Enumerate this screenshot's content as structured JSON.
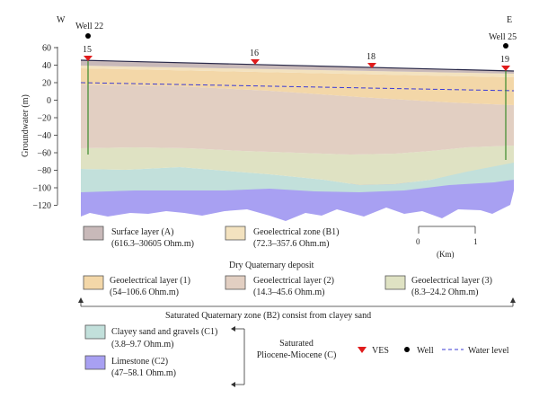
{
  "section": {
    "west_label": "W",
    "east_label": "E",
    "well_west": "Well 22",
    "well_east": "Well 25",
    "y_axis_label": "Groundwater (m)",
    "y_ticks": [
      "60",
      "40",
      "20",
      "0",
      "−20",
      "−40",
      "−60",
      "−80",
      "−100",
      "−120"
    ],
    "ves_points": [
      "15",
      "16",
      "18",
      "19"
    ],
    "scale_labels": [
      "0",
      "1",
      "(Km)"
    ]
  },
  "layers": {
    "surface": "#c8b9b9",
    "geo_b1": "#f3e2bf",
    "geo1": "#f3d7a8",
    "geo2": "#e2cfc2",
    "geo3": "#dfe2c3",
    "clayey": "#c2e0db",
    "limestone": "#a8a0f2"
  },
  "legend": {
    "surface_name": "Surface layer (A)",
    "surface_range": "(616.3–30605 Ohm.m)",
    "b1_name": "Geoelectrical zone (B1)",
    "b1_range": "(72.3–357.6 Ohm.m)",
    "dry_title": "Dry Quaternary deposit",
    "g1_name": "Geoelectrical layer (1)",
    "g1_range": "(54–106.6 Ohm.m)",
    "g2_name": "Geoelectrical layer (2)",
    "g2_range": "(14.3–45.6 Ohm.m)",
    "g3_name": "Geoelectrical layer (3)",
    "g3_range": "(8.3–24.2 Ohm.m)",
    "saturated_title": "Saturated Quaternary zone (B2) consist from clayey sand",
    "c1_name": "Clayey sand and gravels (C1)",
    "c1_range": "(3.8–9.7 Ohm.m)",
    "c2_name": "Limestone (C2)",
    "c2_range": "(47–58.1 Ohm.m)",
    "pliocene_line1": "Saturated",
    "pliocene_line2": "Pliocene-Miocene (C)",
    "ves_label": "VES",
    "well_label": "Well",
    "water_label": "Water level"
  },
  "colors": {
    "ves_marker": "#e01b1b",
    "well_marker": "#000000",
    "water_line": "#3a3ad6",
    "well_line": "#3a8a2a"
  }
}
